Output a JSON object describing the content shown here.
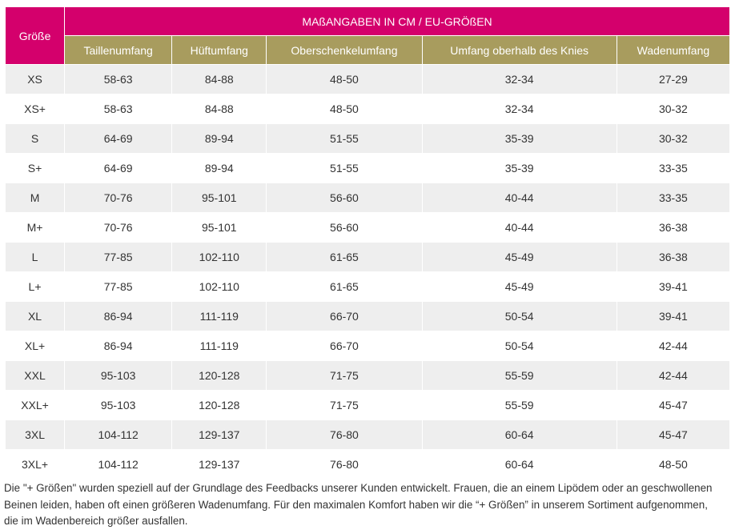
{
  "table": {
    "size_header": "Größe",
    "group_header": "MAßANGABEN IN CM / EU-GRÖßEN",
    "columns": [
      "Taillenumfang",
      "Hüftumfang",
      "Oberschenkelumfang",
      "Umfang oberhalb des Knies",
      "Wadenumfang"
    ],
    "rows": [
      {
        "size": "XS",
        "values": [
          "58-63",
          "84-88",
          "48-50",
          "32-34",
          "27-29"
        ]
      },
      {
        "size": "XS+",
        "values": [
          "58-63",
          "84-88",
          "48-50",
          "32-34",
          "30-32"
        ]
      },
      {
        "size": "S",
        "values": [
          "64-69",
          "89-94",
          "51-55",
          "35-39",
          "30-32"
        ]
      },
      {
        "size": "S+",
        "values": [
          "64-69",
          "89-94",
          "51-55",
          "35-39",
          "33-35"
        ]
      },
      {
        "size": "M",
        "values": [
          "70-76",
          "95-101",
          "56-60",
          "40-44",
          "33-35"
        ]
      },
      {
        "size": "M+",
        "values": [
          "70-76",
          "95-101",
          "56-60",
          "40-44",
          "36-38"
        ]
      },
      {
        "size": "L",
        "values": [
          "77-85",
          "102-110",
          "61-65",
          "45-49",
          "36-38"
        ]
      },
      {
        "size": "L+",
        "values": [
          "77-85",
          "102-110",
          "61-65",
          "45-49",
          "39-41"
        ]
      },
      {
        "size": "XL",
        "values": [
          "86-94",
          "111-119",
          "66-70",
          "50-54",
          "39-41"
        ]
      },
      {
        "size": "XL+",
        "values": [
          "86-94",
          "111-119",
          "66-70",
          "50-54",
          "42-44"
        ]
      },
      {
        "size": "XXL",
        "values": [
          "95-103",
          "120-128",
          "71-75",
          "55-59",
          "42-44"
        ]
      },
      {
        "size": "XXL+",
        "values": [
          "95-103",
          "120-128",
          "71-75",
          "55-59",
          "45-47"
        ]
      },
      {
        "size": "3XL",
        "values": [
          "104-112",
          "129-137",
          "76-80",
          "60-64",
          "45-47"
        ]
      },
      {
        "size": "3XL+",
        "values": [
          "104-112",
          "129-137",
          "76-80",
          "60-64",
          "48-50"
        ]
      }
    ]
  },
  "note": "Die \"+ Größen\" wurden speziell auf der Grundlage des Feedbacks unserer Kunden entwickelt. Frauen, die an einem Lipödem oder an geschwollenen Beinen leiden, haben oft einen größeren Wadenumfang. Für den maximalen Komfort haben wir die “+ Größen” in unserem Sortiment aufgenommen, die im Wadenbereich größer ausfallen.",
  "colors": {
    "header_magenta": "#d4006c",
    "header_olive": "#a89c5e",
    "row_stripe": "#eeeeee"
  }
}
